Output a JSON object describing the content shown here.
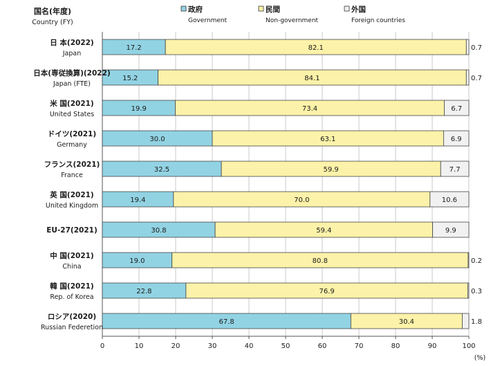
{
  "header": {
    "line1": "国名(年度)",
    "line2": "Country (FY)"
  },
  "legend": [
    {
      "label_ja": "政府",
      "label_en": "Government",
      "color": "#92d3e3"
    },
    {
      "label_ja": "民間",
      "label_en": "Non-government",
      "color": "#fcf2a9"
    },
    {
      "label_ja": "外国",
      "label_en": "Foreign countries",
      "color": "#f1f1f1"
    }
  ],
  "colors": {
    "grid": "#c9c9c9",
    "border": "#444444",
    "panel": "#ffffff"
  },
  "chart_data": {
    "type": "bar",
    "orientation": "horizontal",
    "stacked": true,
    "categories": [
      {
        "ja": "日 本(2022)",
        "en": "Japan"
      },
      {
        "ja": "日本(専従換算)(2022)",
        "en": "Japan (FTE)"
      },
      {
        "ja": "米 国(2021)",
        "en": "United States"
      },
      {
        "ja": "ドイツ(2021)",
        "en": "Germany"
      },
      {
        "ja": "フランス(2021)",
        "en": "France"
      },
      {
        "ja": "英 国(2021)",
        "en": "United Kingdom"
      },
      {
        "ja": "EU-27(2021)",
        "en": ""
      },
      {
        "ja": "中 国(2021)",
        "en": "China"
      },
      {
        "ja": "韓 国(2021)",
        "en": "Rep. of Korea"
      },
      {
        "ja": "ロシア(2020)",
        "en": "Russian Federetion"
      }
    ],
    "series": [
      {
        "name": "政府 Government",
        "values": [
          17.2,
          15.2,
          19.9,
          30.0,
          32.5,
          19.4,
          30.8,
          19.0,
          22.8,
          67.8
        ]
      },
      {
        "name": "民間 Non-government",
        "values": [
          82.1,
          84.1,
          73.4,
          63.1,
          59.9,
          70.0,
          59.4,
          80.8,
          76.9,
          30.4
        ]
      },
      {
        "name": "外国 Foreign countries",
        "values": [
          0.7,
          0.7,
          6.7,
          6.9,
          7.7,
          10.6,
          9.9,
          0.2,
          0.3,
          1.8
        ]
      }
    ],
    "xlim": [
      0,
      100
    ],
    "xticks": [
      0,
      10,
      20,
      30,
      40,
      50,
      60,
      70,
      80,
      90,
      100
    ],
    "xlabel": "(%)",
    "grid": true,
    "legend_position": "top"
  }
}
